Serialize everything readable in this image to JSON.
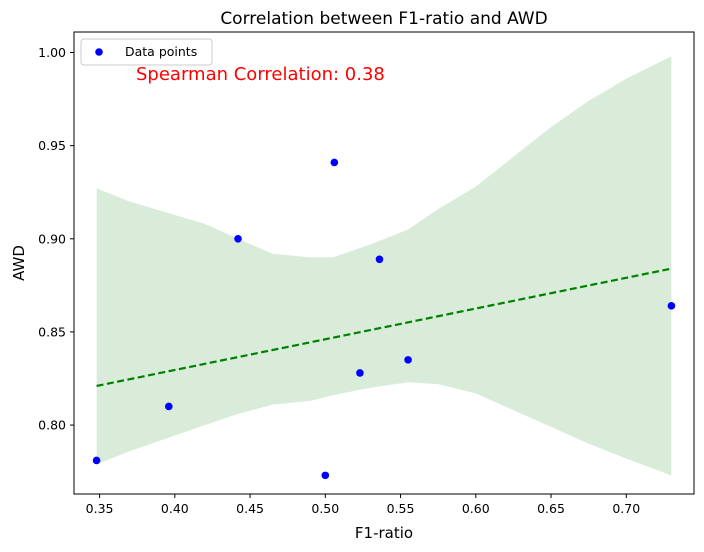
{
  "chart_data": {
    "type": "scatter",
    "title": "Correlation between F1-ratio and AWD",
    "xlabel": "F1-ratio",
    "ylabel": "AWD",
    "xlim": [
      0.333,
      0.745
    ],
    "ylim": [
      0.763,
      1.011
    ],
    "xticks": [
      0.35,
      0.4,
      0.45,
      0.5,
      0.55,
      0.6,
      0.65,
      0.7
    ],
    "xtick_labels": [
      "0.35",
      "0.40",
      "0.45",
      "0.50",
      "0.55",
      "0.60",
      "0.65",
      "0.70"
    ],
    "yticks": [
      0.8,
      0.85,
      0.9,
      0.95,
      1.0
    ],
    "ytick_labels": [
      "0.80",
      "0.85",
      "0.90",
      "0.95",
      "1.00"
    ],
    "grid": false,
    "legend": {
      "placement": "upper-left",
      "entries": [
        "Data points"
      ]
    },
    "annotation": {
      "text": "Spearman Correlation: 0.38",
      "color": "#ff0000"
    },
    "colors": {
      "points": "#0000ff",
      "line": "#008000",
      "band": "#d9ecd9"
    },
    "points": [
      {
        "x": 0.348,
        "y": 0.781
      },
      {
        "x": 0.396,
        "y": 0.81
      },
      {
        "x": 0.442,
        "y": 0.9
      },
      {
        "x": 0.5,
        "y": 0.773
      },
      {
        "x": 0.506,
        "y": 0.941
      },
      {
        "x": 0.523,
        "y": 0.828
      },
      {
        "x": 0.536,
        "y": 0.889
      },
      {
        "x": 0.555,
        "y": 0.835
      },
      {
        "x": 0.73,
        "y": 0.864
      }
    ],
    "regression_line": {
      "x": [
        0.348,
        0.73
      ],
      "y": [
        0.821,
        0.884
      ]
    },
    "confidence_band": {
      "x": [
        0.348,
        0.37,
        0.395,
        0.42,
        0.442,
        0.465,
        0.49,
        0.505,
        0.53,
        0.555,
        0.575,
        0.6,
        0.625,
        0.65,
        0.675,
        0.7,
        0.73
      ],
      "upper": [
        0.927,
        0.92,
        0.914,
        0.908,
        0.9,
        0.892,
        0.89,
        0.89,
        0.897,
        0.905,
        0.916,
        0.928,
        0.944,
        0.96,
        0.974,
        0.986,
        0.998
      ],
      "lower": [
        0.779,
        0.786,
        0.793,
        0.8,
        0.806,
        0.811,
        0.813,
        0.816,
        0.82,
        0.823,
        0.822,
        0.817,
        0.808,
        0.799,
        0.79,
        0.782,
        0.773
      ]
    }
  }
}
